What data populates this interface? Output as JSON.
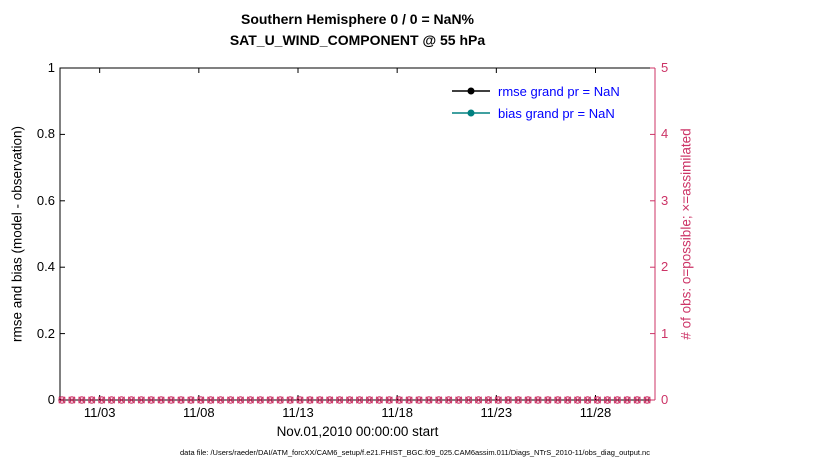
{
  "title": {
    "line1": "Southern Hemisphere 0 / 0 = NaN%",
    "line2": "SAT_U_WIND_COMPONENT @ 55 hPa"
  },
  "axes": {
    "x": {
      "label": "Nov.01,2010 00:00:00 start"
    },
    "left": {
      "label": "rmse and bias (model - observation)"
    },
    "right": {
      "label": "# of obs: o=possible; ×=assimilated"
    }
  },
  "legend": [
    {
      "label": "rmse grand pr = NaN",
      "color": "#000000"
    },
    {
      "label": "bias grand pr = NaN",
      "color": "#008080"
    }
  ],
  "colors": {
    "legend_text": "#0000FF",
    "right_axis": "#CC3366",
    "rmse_line": "#000000",
    "bias_line": "#008080"
  },
  "footer": "data file: /Users/raeder/DAI/ATM_forcXX/CAM6_setup/f.e21.FHIST_BGC.f09_025.CAM6assim.011/Diags_NTrS_2010-11/obs_diag_output.nc",
  "chart_data": {
    "type": "line",
    "title": "Southern Hemisphere 0 / 0 = NaN%",
    "subtitle": "SAT_U_WIND_COMPONENT @ 55 hPa",
    "xlabel": "Nov.01,2010 00:00:00 start",
    "x_axis": {
      "range_days": [
        1,
        31
      ],
      "tick_days": [
        3,
        8,
        13,
        18,
        23,
        28
      ],
      "tick_labels": [
        "11/03",
        "11/08",
        "11/13",
        "11/18",
        "11/23",
        "11/28"
      ]
    },
    "y_left": {
      "label": "rmse and bias (model - observation)",
      "lim": [
        0,
        1
      ],
      "ticks": [
        0,
        0.2,
        0.4,
        0.6,
        0.8,
        1
      ],
      "tick_labels": [
        "0",
        "0.2",
        "0.4",
        "0.6",
        "0.8",
        "1"
      ],
      "color": "#000000"
    },
    "y_right": {
      "label": "# of obs: o=possible; ×=assimilated",
      "lim": [
        0,
        5
      ],
      "ticks": [
        0,
        1,
        2,
        3,
        4,
        5
      ],
      "tick_labels": [
        "0",
        "1",
        "2",
        "3",
        "4",
        "5"
      ],
      "color": "#CC3366"
    },
    "series": [
      {
        "name": "rmse grand pr = NaN",
        "color": "#000000",
        "values": "NaN (no line plotted)"
      },
      {
        "name": "bias grand pr = NaN",
        "color": "#008080",
        "values": "NaN (no line plotted)"
      }
    ],
    "obs_count_markers": {
      "color": "#CC3366",
      "possible_marker": "o",
      "assimilated_marker": "x",
      "count_value": 0,
      "n_times": 60,
      "first_day": 1.1,
      "interval_days": 0.5,
      "note": "o and x markers all at y=0 (right axis) for every 12-hour bin in Nov 2010"
    },
    "grid": false,
    "legend_position": "top-right-inside"
  }
}
